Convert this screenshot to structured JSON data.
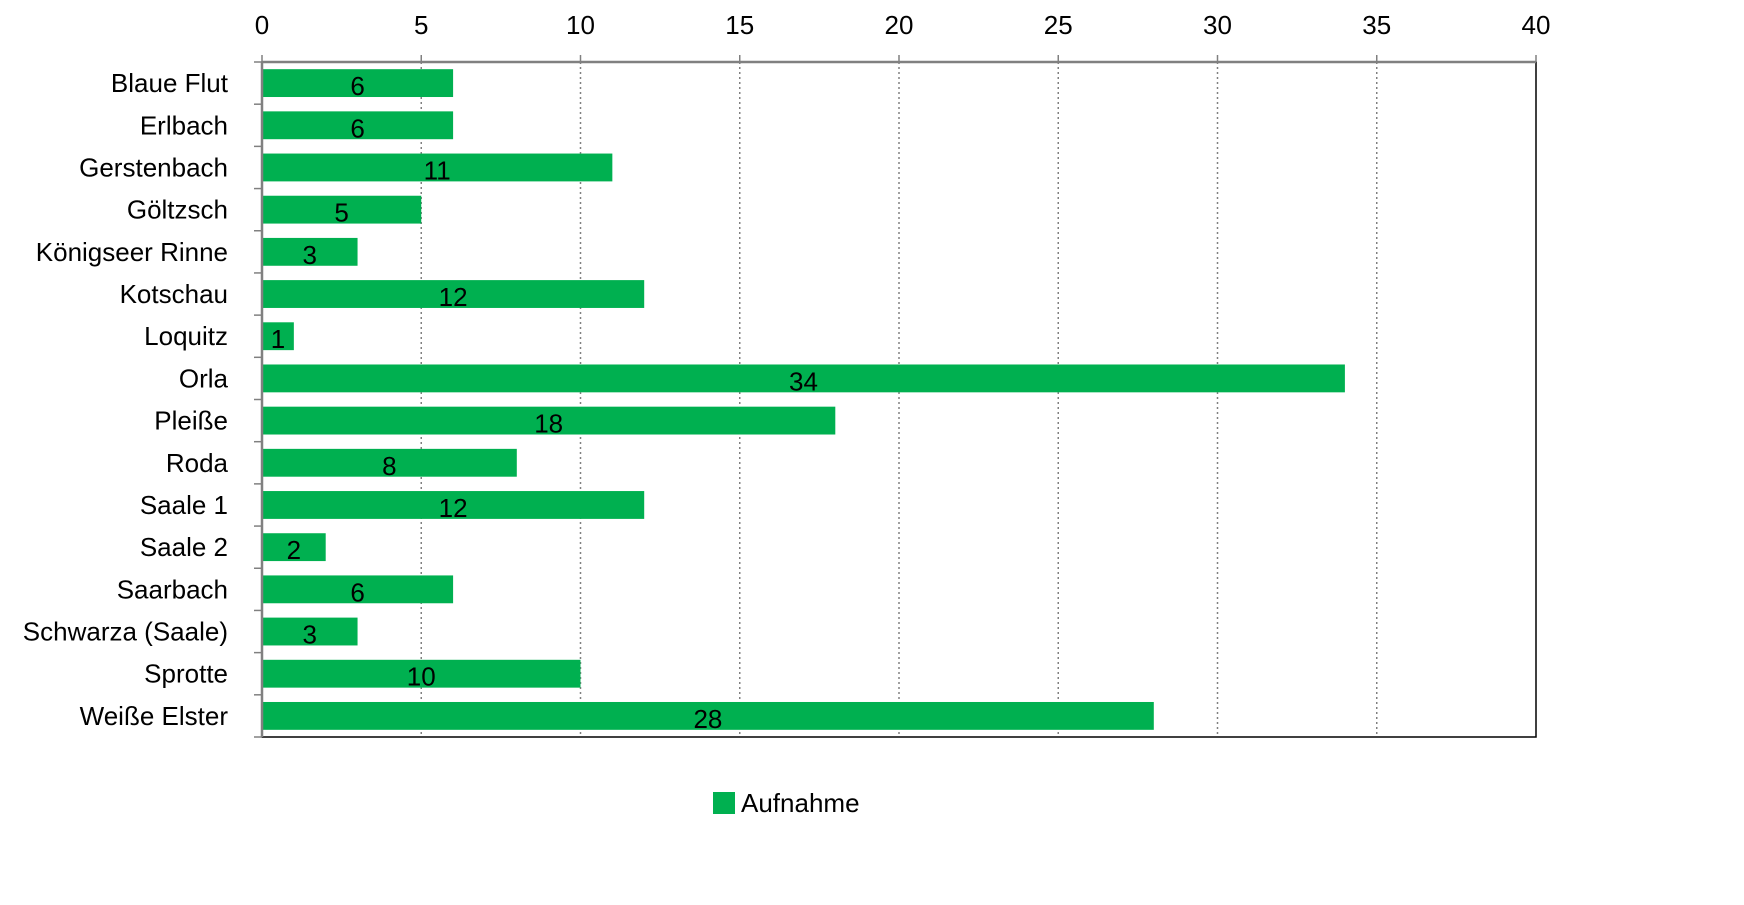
{
  "chart_data": {
    "type": "bar",
    "orientation": "horizontal",
    "categories": [
      "Blaue Flut",
      "Erlbach",
      "Gerstenbach",
      "Göltzsch",
      "Königseer Rinne",
      "Kotschau",
      "Loquitz",
      "Orla",
      "Pleiße",
      "Roda",
      "Saale 1",
      "Saale 2",
      "Saarbach",
      "Schwarza (Saale)",
      "Sprotte",
      "Weiße Elster"
    ],
    "series": [
      {
        "name": "Aufnahme",
        "color": "#00b050",
        "values": [
          6,
          6,
          11,
          5,
          3,
          12,
          1,
          34,
          18,
          8,
          12,
          2,
          6,
          3,
          10,
          28
        ]
      }
    ],
    "xlim": [
      0,
      40
    ],
    "x_ticks": [
      0,
      5,
      10,
      15,
      20,
      25,
      30,
      35,
      40
    ],
    "x_axis_position": "top",
    "grid": "vertical-dotted",
    "legend_position": "bottom-center",
    "data_labels": "inside-center"
  }
}
